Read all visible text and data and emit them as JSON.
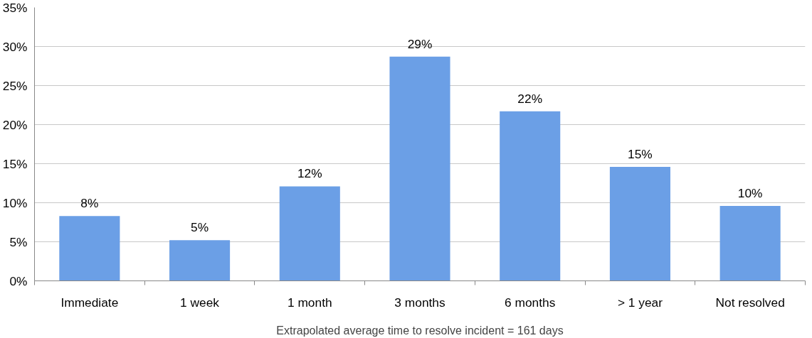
{
  "chart_data": {
    "type": "bar",
    "xlabel": "Extrapolated average time to resolve incident = 161 days",
    "categories": [
      "Immediate",
      "1 week",
      "1 month",
      "3 months",
      "6 months",
      "> 1 year",
      "Not resolved"
    ],
    "values": [
      8.3,
      5.2,
      12.1,
      28.7,
      21.7,
      14.6,
      9.6
    ],
    "value_labels": [
      "8%",
      "5%",
      "12%",
      "29%",
      "22%",
      "15%",
      "10%"
    ],
    "color": "#6b9fe6",
    "ylim": [
      0,
      35
    ],
    "yticks": [
      {
        "value": 0,
        "label": "0%"
      },
      {
        "value": 5,
        "label": "5%"
      },
      {
        "value": 10,
        "label": "10%"
      },
      {
        "value": 15,
        "label": "15%"
      },
      {
        "value": 20,
        "label": "20%"
      },
      {
        "value": 25,
        "label": "25%"
      },
      {
        "value": 30,
        "label": "30%"
      },
      {
        "value": 35,
        "label": "35%"
      }
    ],
    "grid": "y"
  }
}
